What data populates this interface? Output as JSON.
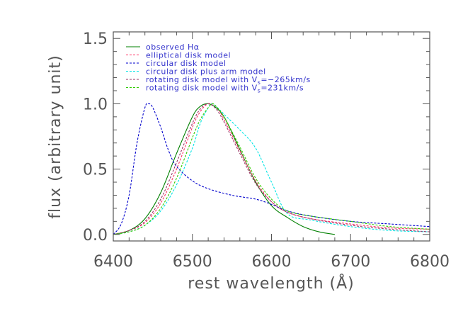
{
  "chart_data": {
    "type": "line",
    "title": "",
    "xlabel": "rest wavelength (Å)",
    "ylabel": "flux (arbitrary unit)",
    "xlim": [
      6400,
      6800
    ],
    "ylim": [
      -0.05,
      1.55
    ],
    "xticks": [
      6400,
      6500,
      6600,
      6700,
      6800
    ],
    "xtick_labels": [
      "6400",
      "6500",
      "6600",
      "6700",
      "6800"
    ],
    "yticks": [
      0.0,
      0.5,
      1.0,
      1.5
    ],
    "ytick_labels": [
      "0.0",
      "0.5",
      "1.0",
      "1.5"
    ],
    "grid": false,
    "legend_position": "top-right",
    "series": [
      {
        "name": "observed Hα",
        "color": "#008000",
        "dash": "solid",
        "x": [
          6400,
          6420,
          6440,
          6460,
          6480,
          6500,
          6510,
          6520,
          6530,
          6540,
          6550,
          6560,
          6580,
          6600,
          6620,
          6640,
          6660,
          6680
        ],
        "y": [
          0.0,
          0.03,
          0.12,
          0.32,
          0.62,
          0.9,
          0.98,
          1.0,
          0.97,
          0.9,
          0.78,
          0.65,
          0.4,
          0.22,
          0.13,
          0.06,
          0.02,
          0.0
        ]
      },
      {
        "name": "elliptical disk model",
        "color": "#ff3366",
        "dash": "dashed",
        "x": [
          6400,
          6420,
          6440,
          6460,
          6480,
          6500,
          6510,
          6520,
          6530,
          6540,
          6560,
          6580,
          6600,
          6620,
          6650,
          6700,
          6750,
          6800
        ],
        "y": [
          0.0,
          0.03,
          0.09,
          0.24,
          0.5,
          0.82,
          0.94,
          1.0,
          0.98,
          0.88,
          0.64,
          0.41,
          0.25,
          0.17,
          0.12,
          0.08,
          0.05,
          0.04
        ]
      },
      {
        "name": "circular disk model",
        "color": "#0000cc",
        "dash": "dashed",
        "x": [
          6400,
          6410,
          6420,
          6430,
          6440,
          6445,
          6450,
          6460,
          6470,
          6480,
          6500,
          6520,
          6550,
          6580,
          6600,
          6620,
          6650,
          6700,
          6750,
          6800
        ],
        "y": [
          0.0,
          0.08,
          0.3,
          0.7,
          0.97,
          1.0,
          0.97,
          0.82,
          0.64,
          0.52,
          0.41,
          0.35,
          0.3,
          0.27,
          0.23,
          0.18,
          0.14,
          0.1,
          0.08,
          0.06
        ]
      },
      {
        "name": "circular disk plus arm model",
        "color": "#00e5e5",
        "dash": "dashed",
        "x": [
          6400,
          6420,
          6440,
          6460,
          6480,
          6500,
          6510,
          6520,
          6525,
          6530,
          6540,
          6560,
          6580,
          6600,
          6620,
          6650,
          6700,
          6750,
          6800
        ],
        "y": [
          0.0,
          0.02,
          0.07,
          0.18,
          0.38,
          0.66,
          0.85,
          0.97,
          1.0,
          0.98,
          0.92,
          0.8,
          0.66,
          0.4,
          0.16,
          0.11,
          0.06,
          0.03,
          0.02
        ]
      },
      {
        "name": "rotating disk model with V_s=−265km/s",
        "color": "#993366",
        "dash": "dashed",
        "x": [
          6400,
          6420,
          6440,
          6460,
          6480,
          6500,
          6510,
          6520,
          6530,
          6540,
          6560,
          6580,
          6600,
          6620,
          6650,
          6700,
          6750,
          6800
        ],
        "y": [
          0.0,
          0.03,
          0.1,
          0.27,
          0.55,
          0.85,
          0.96,
          1.0,
          0.96,
          0.86,
          0.62,
          0.39,
          0.25,
          0.17,
          0.12,
          0.07,
          0.04,
          0.02
        ]
      },
      {
        "name": "rotating disk model with V_s=231km/s",
        "color": "#33cc00",
        "dash": "dashed",
        "x": [
          6400,
          6420,
          6440,
          6460,
          6480,
          6500,
          6510,
          6520,
          6525,
          6530,
          6540,
          6560,
          6580,
          6600,
          6620,
          6650,
          6700,
          6750,
          6800
        ],
        "y": [
          0.0,
          0.02,
          0.07,
          0.2,
          0.43,
          0.74,
          0.88,
          0.97,
          1.0,
          0.98,
          0.9,
          0.67,
          0.43,
          0.27,
          0.18,
          0.14,
          0.1,
          0.06,
          0.04
        ]
      }
    ]
  },
  "legend": {
    "items": [
      {
        "label_prefix": "observed H",
        "label_symbol": "α",
        "label_suffix": ""
      },
      {
        "label_prefix": "elliptical disk model",
        "label_symbol": "",
        "label_suffix": ""
      },
      {
        "label_prefix": "circular disk model",
        "label_symbol": "",
        "label_suffix": ""
      },
      {
        "label_prefix": "circular disk plus arm model",
        "label_symbol": "",
        "label_suffix": ""
      },
      {
        "label_prefix": "rotating disk model with V",
        "label_symbol": "s",
        "label_suffix": "=−265km/s"
      },
      {
        "label_prefix": "rotating disk model with V",
        "label_symbol": "s",
        "label_suffix": "=231km/s"
      }
    ]
  }
}
